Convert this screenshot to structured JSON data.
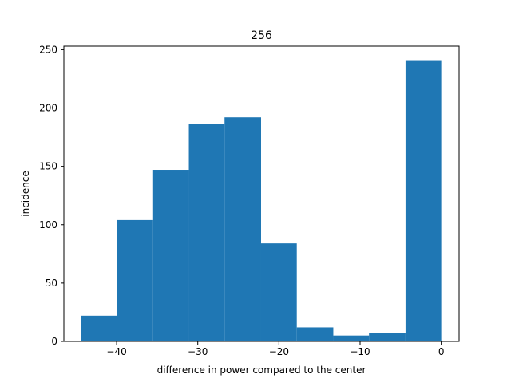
{
  "chart_data": {
    "type": "bar",
    "title": "256",
    "xlabel": "difference in power compared to the center",
    "ylabel": "incidence",
    "xlim": [
      -46.5,
      2.2
    ],
    "ylim": [
      0,
      253
    ],
    "xticks": [
      -40,
      -30,
      -20,
      -10,
      0
    ],
    "xtick_labels": [
      "−40",
      "−30",
      "−20",
      "−10",
      "0"
    ],
    "yticks": [
      0,
      50,
      100,
      150,
      200,
      250
    ],
    "ytick_labels": [
      "0",
      "50",
      "100",
      "150",
      "200",
      "250"
    ],
    "bin_edges": [
      -44.4,
      -40.0,
      -35.6,
      -31.1,
      -26.7,
      -22.2,
      -17.8,
      -13.3,
      -8.9,
      -4.4,
      0.0
    ],
    "values": [
      22,
      104,
      147,
      186,
      192,
      84,
      12,
      5,
      7,
      241
    ],
    "color": "#1f77b4",
    "grid": false,
    "legend": "none"
  }
}
